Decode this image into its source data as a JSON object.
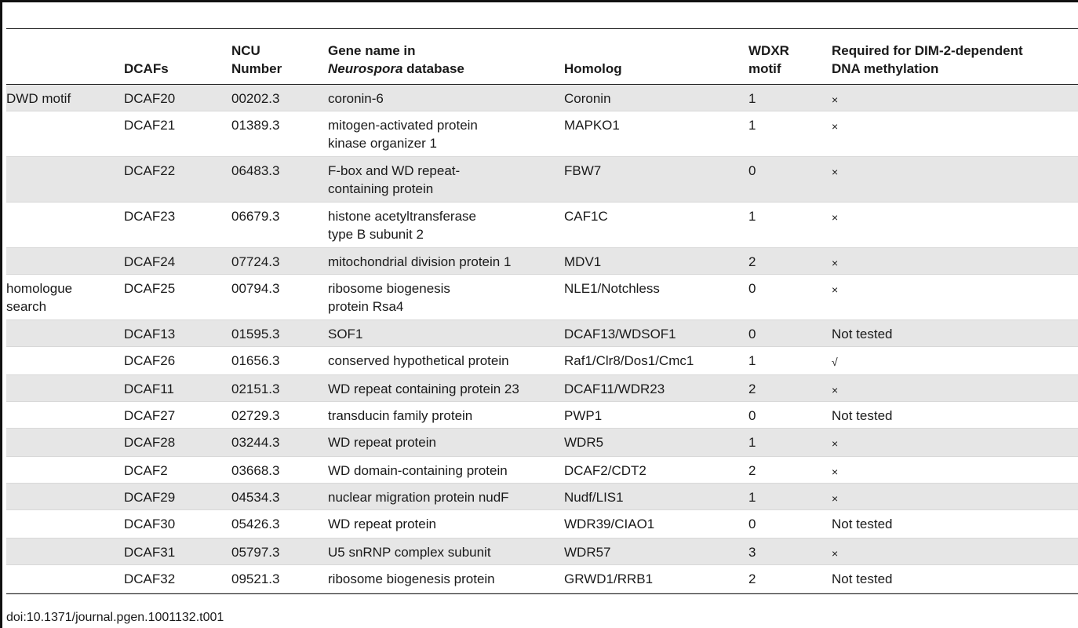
{
  "header": {
    "col0": "",
    "col1": "DCAFs",
    "col2_line1": "NCU",
    "col2_line2": "Number",
    "col3_line1": "Gene name in",
    "col3_italic": "Neurospora",
    "col3_rest": " database",
    "col4": "Homolog",
    "col5_line1": "WDXR",
    "col5_line2": "motif",
    "col6_line1": "Required for DIM-2-dependent",
    "col6_line2": "DNA methylation"
  },
  "rows": [
    {
      "group": "DWD motif",
      "dcaf": "DCAF20",
      "ncu": "00202.3",
      "gene": "coronin-6",
      "homolog": "Coronin",
      "wdxr": "1",
      "required": "×"
    },
    {
      "group": "",
      "dcaf": "DCAF21",
      "ncu": "01389.3",
      "gene": "mitogen-activated protein kinase organizer 1",
      "homolog": "MAPKO1",
      "wdxr": "1",
      "required": "×"
    },
    {
      "group": "",
      "dcaf": "DCAF22",
      "ncu": "06483.3",
      "gene": "F-box and WD repeat-containing protein",
      "homolog": "FBW7",
      "wdxr": "0",
      "required": "×"
    },
    {
      "group": "",
      "dcaf": "DCAF23",
      "ncu": "06679.3",
      "gene": "histone acetyltransferase type B subunit 2",
      "homolog": "CAF1C",
      "wdxr": "1",
      "required": "×"
    },
    {
      "group": "",
      "dcaf": "DCAF24",
      "ncu": "07724.3",
      "gene": "mitochondrial division protein 1",
      "homolog": "MDV1",
      "wdxr": "2",
      "required": "×"
    },
    {
      "group": "homologue search",
      "dcaf": "DCAF25",
      "ncu": "00794.3",
      "gene": "ribosome biogenesis protein Rsa4",
      "homolog": "NLE1/Notchless",
      "wdxr": "0",
      "required": "×"
    },
    {
      "group": "",
      "dcaf": "DCAF13",
      "ncu": "01595.3",
      "gene": "SOF1",
      "homolog": "DCAF13/WDSOF1",
      "wdxr": "0",
      "required": "Not tested"
    },
    {
      "group": "",
      "dcaf": "DCAF26",
      "ncu": "01656.3",
      "gene": "conserved hypothetical protein",
      "homolog": "Raf1/Clr8/Dos1/Cmc1",
      "wdxr": "1",
      "required": "√"
    },
    {
      "group": "",
      "dcaf": "DCAF11",
      "ncu": "02151.3",
      "gene": "WD repeat containing protein 23",
      "homolog": "DCAF11/WDR23",
      "wdxr": "2",
      "required": "×"
    },
    {
      "group": "",
      "dcaf": "DCAF27",
      "ncu": "02729.3",
      "gene": "transducin family protein",
      "homolog": "PWP1",
      "wdxr": "0",
      "required": "Not tested"
    },
    {
      "group": "",
      "dcaf": "DCAF28",
      "ncu": "03244.3",
      "gene": "WD repeat protein",
      "homolog": "WDR5",
      "wdxr": "1",
      "required": "×"
    },
    {
      "group": "",
      "dcaf": "DCAF2",
      "ncu": "03668.3",
      "gene": "WD domain-containing protein",
      "homolog": "DCAF2/CDT2",
      "wdxr": "2",
      "required": "×"
    },
    {
      "group": "",
      "dcaf": "DCAF29",
      "ncu": "04534.3",
      "gene": "nuclear migration protein nudF",
      "homolog": "Nudf/LIS1",
      "wdxr": "1",
      "required": "×"
    },
    {
      "group": "",
      "dcaf": "DCAF30",
      "ncu": "05426.3",
      "gene": "WD repeat protein",
      "homolog": "WDR39/CIAO1",
      "wdxr": "0",
      "required": "Not tested"
    },
    {
      "group": "",
      "dcaf": "DCAF31",
      "ncu": "05797.3",
      "gene": "U5 snRNP complex subunit",
      "homolog": "WDR57",
      "wdxr": "3",
      "required": "×"
    },
    {
      "group": "",
      "dcaf": "DCAF32",
      "ncu": "09521.3",
      "gene": "ribosome biogenesis protein",
      "homolog": "GRWD1/RRB1",
      "wdxr": "2",
      "required": "Not tested"
    }
  ],
  "footer": {
    "doi": "doi:10.1371/journal.pgen.1001132.t001"
  }
}
